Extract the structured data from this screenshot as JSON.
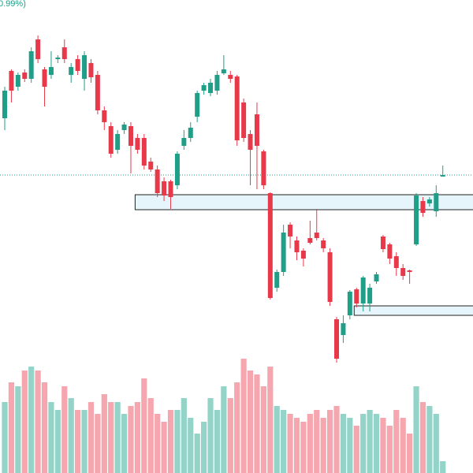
{
  "chart_data": {
    "type": "candlestick",
    "header_text": "0.99%)",
    "up_color": "#1f9e88",
    "down_color": "#e8394b",
    "up_volume_color": "#93d3c8",
    "down_volume_color": "#f6a6ae",
    "ylim": [
      0,
      600
    ],
    "vlim": [
      0,
      150
    ],
    "open": [
      450,
      510,
      490,
      508,
      500,
      550,
      512,
      505,
      525,
      540,
      505,
      525,
      500,
      520,
      505,
      460,
      440,
      410,
      435,
      440,
      425,
      425,
      395,
      385,
      370,
      370,
      365,
      415,
      425,
      452,
      485,
      482,
      485,
      507,
      505,
      503,
      470,
      430,
      455,
      408,
      355,
      235,
      255,
      315,
      295,
      282,
      298,
      305,
      295,
      280,
      195,
      175,
      200,
      233,
      215,
      215,
      243,
      300,
      290,
      275,
      260,
      257,
      290,
      345,
      342,
      332,
      376
    ],
    "high": [
      490,
      512,
      508,
      512,
      540,
      555,
      515,
      535,
      530,
      550,
      520,
      530,
      535,
      525,
      510,
      465,
      445,
      435,
      445,
      445,
      430,
      430,
      400,
      390,
      375,
      372,
      408,
      435,
      445,
      485,
      495,
      500,
      510,
      530,
      510,
      505,
      475,
      435,
      470,
      410,
      356,
      258,
      315,
      318,
      300,
      285,
      320,
      335,
      298,
      285,
      198,
      200,
      232,
      235,
      250,
      240,
      255,
      302,
      292,
      280,
      265,
      258,
      355,
      350,
      350,
      365,
      390
    ],
    "low": [
      435,
      470,
      485,
      496,
      495,
      520,
      465,
      500,
      520,
      520,
      495,
      505,
      485,
      495,
      455,
      435,
      400,
      405,
      430,
      380,
      405,
      385,
      382,
      350,
      345,
      335,
      360,
      410,
      420,
      445,
      480,
      478,
      480,
      505,
      495,
      415,
      420,
      365,
      360,
      360,
      220,
      230,
      250,
      285,
      270,
      262,
      290,
      295,
      280,
      212,
      140,
      165,
      195,
      210,
      205,
      205,
      240,
      280,
      265,
      250,
      245,
      240,
      288,
      325,
      338,
      325,
      376
    ],
    "close": [
      485,
      485,
      505,
      500,
      535,
      525,
      490,
      515,
      527,
      525,
      515,
      510,
      530,
      502,
      460,
      445,
      405,
      430,
      442,
      415,
      410,
      390,
      385,
      355,
      352,
      350,
      405,
      425,
      438,
      482,
      492,
      495,
      505,
      512,
      500,
      422,
      425,
      410,
      415,
      365,
      222,
      255,
      305,
      300,
      280,
      272,
      292,
      298,
      285,
      217,
      145,
      190,
      230,
      215,
      248,
      235,
      252,
      284,
      272,
      260,
      250,
      255,
      352,
      330,
      347,
      355,
      378
    ],
    "volume": [
      90,
      115,
      110,
      130,
      135,
      130,
      115,
      90,
      80,
      110,
      95,
      80,
      80,
      90,
      75,
      100,
      90,
      90,
      75,
      85,
      90,
      120,
      95,
      75,
      65,
      80,
      80,
      95,
      70,
      50,
      65,
      95,
      80,
      110,
      95,
      115,
      145,
      130,
      125,
      110,
      135,
      85,
      80,
      75,
      70,
      65,
      75,
      80,
      70,
      80,
      85,
      75,
      70,
      60,
      75,
      80,
      75,
      70,
      60,
      80,
      70,
      50,
      110,
      90,
      85,
      75,
      15
    ],
    "price_line": 378,
    "zones": [
      {
        "start": 20,
        "top": 353,
        "bottom": 334
      },
      {
        "start": 53,
        "top": 212,
        "bottom": 200
      }
    ]
  }
}
